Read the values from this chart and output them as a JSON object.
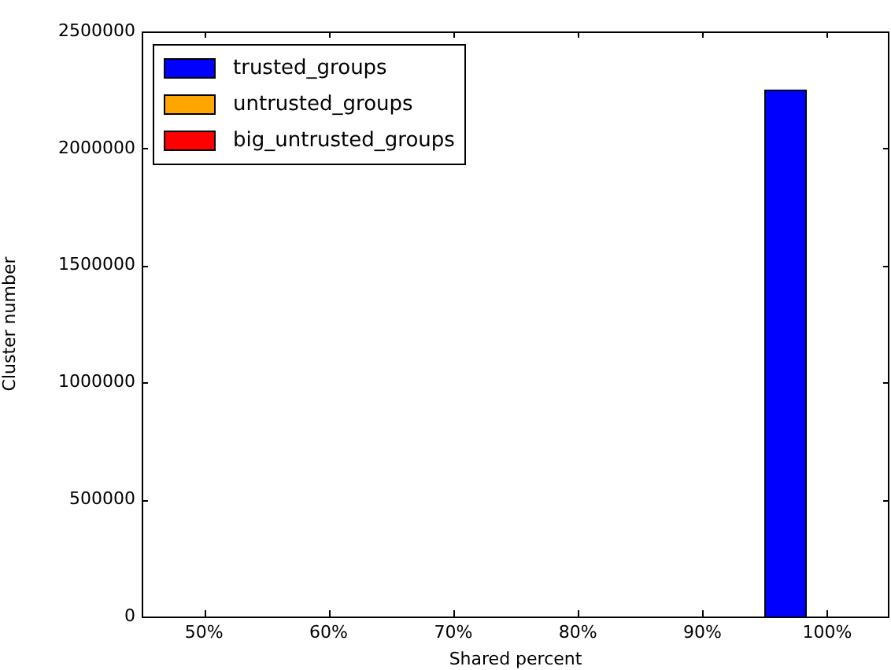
{
  "chart_data": {
    "type": "bar",
    "xlabel": "Shared percent",
    "ylabel": "Cluster number",
    "categories": [
      "50%",
      "60%",
      "70%",
      "80%",
      "90%",
      "100%"
    ],
    "series": [
      {
        "name": "trusted_groups",
        "color": "#0000ff",
        "values": [
          0,
          0,
          0,
          0,
          0,
          2250000
        ]
      },
      {
        "name": "untrusted_groups",
        "color": "#ffa500",
        "values": [
          0,
          0,
          0,
          0,
          0,
          0
        ]
      },
      {
        "name": "big_untrusted_groups",
        "color": "#ff0000",
        "values": [
          0,
          0,
          0,
          0,
          0,
          0
        ]
      }
    ],
    "ylim": [
      0,
      2500000
    ],
    "yticks": [
      0,
      500000,
      1000000,
      1500000,
      2000000,
      2500000
    ],
    "grid": false,
    "legend": "top left"
  }
}
